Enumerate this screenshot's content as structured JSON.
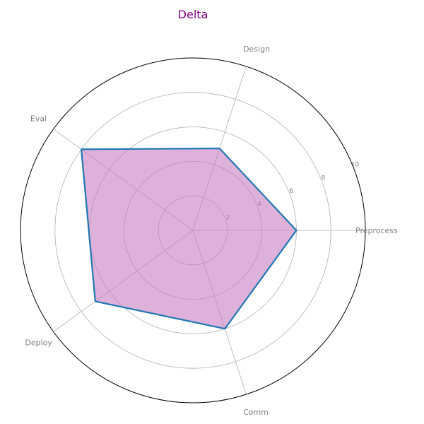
{
  "chart_data": {
    "type": "radar",
    "title": "Delta",
    "categories": [
      "Preprocess",
      "Design",
      "Eval",
      "Deploy",
      "Comm"
    ],
    "series": [
      {
        "values": [
          6,
          5,
          8,
          7,
          6
        ]
      }
    ],
    "rlim": [
      0,
      10
    ],
    "r_ticks": [
      2,
      4,
      6,
      8,
      10
    ],
    "grid": true,
    "colors": {
      "title": "#800080",
      "line": "#1f77b4",
      "fill": "#c77dc1",
      "grid": "#b0b0b0",
      "outer": "#000000"
    }
  }
}
